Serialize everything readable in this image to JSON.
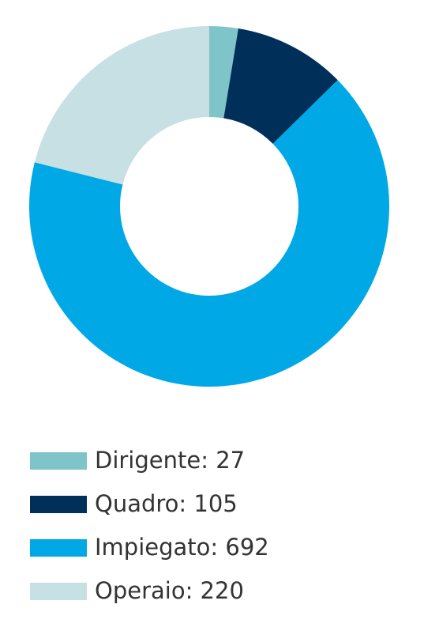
{
  "chart_data": {
    "type": "donut",
    "categories": [
      "Dirigente: 27",
      "Quadro: 105",
      "Impiegato: 692",
      "Operaio: 220"
    ],
    "values": [
      27,
      105,
      692,
      220
    ],
    "colors": [
      "#7fc4c8",
      "#002f5a",
      "#00a8e6",
      "#c6e0e3"
    ]
  }
}
